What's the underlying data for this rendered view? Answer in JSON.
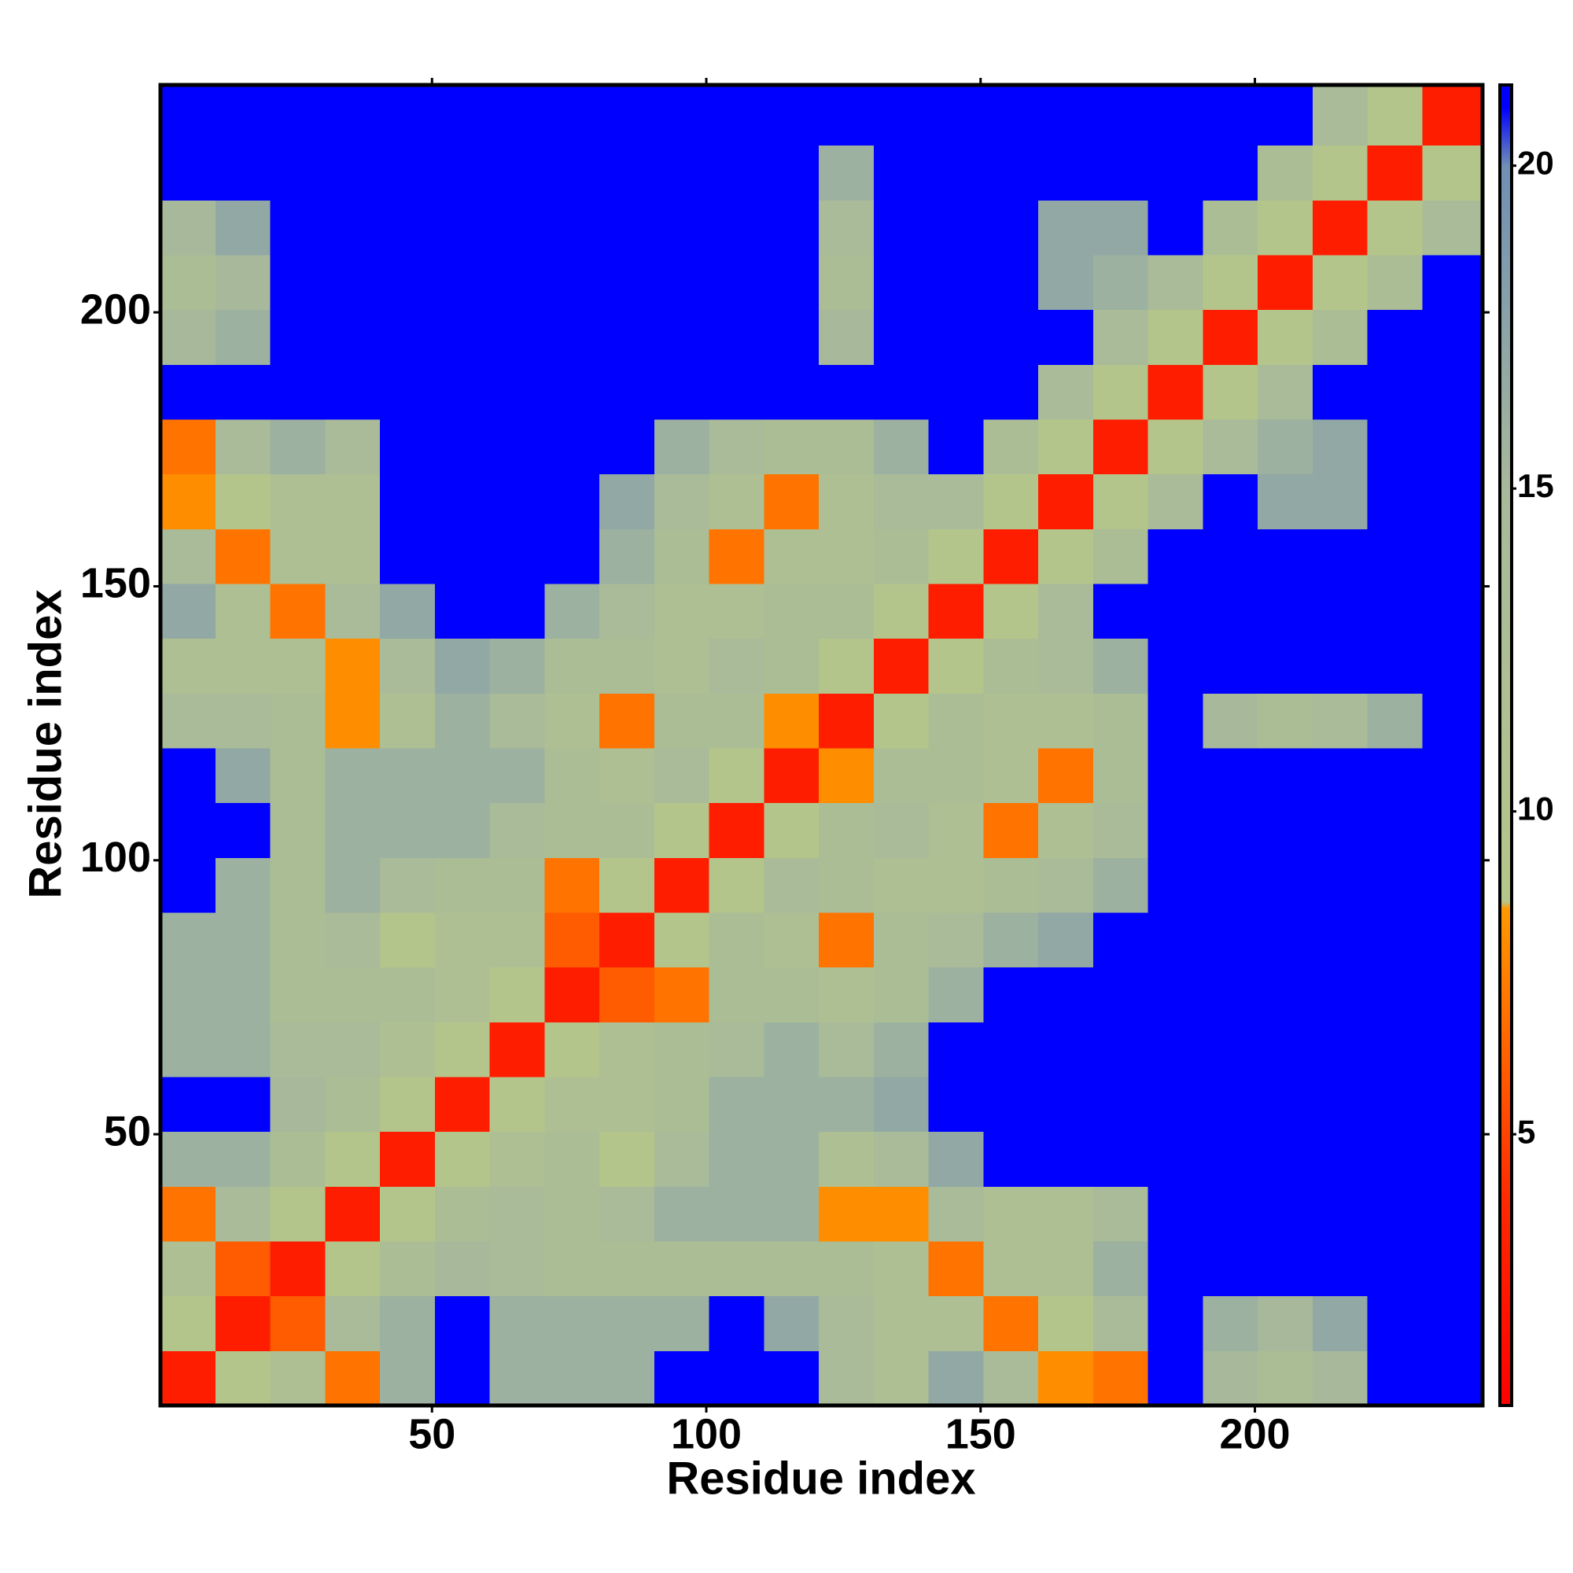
{
  "chart_data": {
    "type": "heatmap",
    "xlabel": "Residue index",
    "ylabel": "Residue index",
    "bins": [
      0.5,
      10.5,
      20.5,
      30.5,
      40.5,
      50.5,
      60.5,
      70.5,
      80.5,
      90.5,
      100.5,
      110.5,
      120.5,
      130.5,
      140.5,
      150.5,
      160.5,
      170.5,
      180.5,
      190.5,
      200.5,
      210.5,
      220.5,
      230.5,
      241.5
    ],
    "xlim": [
      0.5,
      241.5
    ],
    "ylim": [
      0.5,
      241.5
    ],
    "xticks": [
      50,
      100,
      150,
      200
    ],
    "yticks": [
      50,
      100,
      150,
      200
    ],
    "zlim": [
      0.8,
      21.25
    ],
    "zticks": [
      5,
      10,
      15,
      20
    ],
    "colorscale": [
      {
        "value": 0.8,
        "color": "#ff0000"
      },
      {
        "value": 4,
        "color": "#ff2a00"
      },
      {
        "value": 8.5,
        "color": "#ff9900"
      },
      {
        "value": 8.6,
        "color": "#b5c68a"
      },
      {
        "value": 15,
        "color": "#a7b99a"
      },
      {
        "value": 20,
        "color": "#6f8fb5"
      },
      {
        "value": 20.9,
        "color": "#0000ff"
      },
      {
        "value": 21.25,
        "color": "#0000ff"
      }
    ],
    "z": [
      [
        3,
        9,
        12,
        7,
        16,
        21,
        16,
        16,
        16,
        21,
        21,
        21,
        14,
        12,
        17,
        14,
        8,
        7,
        21,
        15,
        13,
        15,
        21,
        21
      ],
      [
        9,
        3,
        6,
        14,
        16,
        21,
        16,
        16,
        16,
        16,
        21,
        17,
        14,
        12,
        12,
        7,
        9,
        14,
        21,
        16,
        15,
        17,
        21,
        21
      ],
      [
        12,
        6,
        3,
        9,
        13,
        15,
        14,
        13,
        13,
        13,
        13,
        13,
        13,
        12,
        7,
        12,
        12,
        16,
        21,
        21,
        21,
        21,
        21,
        21
      ],
      [
        7,
        14,
        9,
        3,
        9,
        13,
        14,
        13,
        14,
        16,
        16,
        16,
        8,
        8,
        14,
        12,
        12,
        14,
        21,
        21,
        21,
        21,
        21,
        21
      ],
      [
        16,
        16,
        13,
        9,
        3,
        9,
        12,
        13,
        9,
        14,
        16,
        16,
        12,
        14,
        17,
        21,
        21,
        21,
        21,
        21,
        21,
        21,
        21,
        21
      ],
      [
        21,
        21,
        15,
        13,
        9,
        3,
        9,
        12,
        12,
        13,
        16,
        16,
        16,
        17,
        21,
        21,
        21,
        21,
        21,
        21,
        21,
        21,
        21,
        21
      ],
      [
        16,
        16,
        14,
        14,
        12,
        9,
        3,
        9,
        12,
        13,
        14,
        16,
        14,
        16,
        21,
        21,
        21,
        21,
        21,
        21,
        21,
        21,
        21,
        21
      ],
      [
        16,
        16,
        13,
        13,
        13,
        12,
        9,
        3,
        6,
        7,
        13,
        13,
        12,
        13,
        16,
        21,
        21,
        21,
        21,
        21,
        21,
        21,
        21,
        21
      ],
      [
        16,
        16,
        13,
        14,
        9,
        12,
        12,
        6,
        3,
        9,
        13,
        12,
        7,
        13,
        14,
        16,
        17,
        21,
        21,
        21,
        21,
        21,
        21,
        21
      ],
      [
        21,
        16,
        13,
        16,
        14,
        13,
        13,
        7,
        9,
        3,
        9,
        14,
        13,
        12,
        12,
        13,
        14,
        16,
        21,
        21,
        21,
        21,
        21,
        21
      ],
      [
        21,
        21,
        13,
        16,
        16,
        16,
        14,
        13,
        13,
        9,
        3,
        9,
        13,
        14,
        12,
        7,
        12,
        14,
        21,
        21,
        21,
        21,
        21,
        21
      ],
      [
        21,
        17,
        13,
        16,
        16,
        16,
        16,
        13,
        12,
        14,
        9,
        3,
        8,
        13,
        13,
        12,
        7,
        13,
        21,
        21,
        21,
        21,
        21,
        21
      ],
      [
        14,
        14,
        13,
        8,
        12,
        16,
        14,
        12,
        7,
        13,
        13,
        8,
        3,
        9,
        13,
        12,
        12,
        13,
        21,
        15,
        13,
        14,
        16,
        21
      ],
      [
        12,
        12,
        12,
        8,
        14,
        17,
        16,
        13,
        13,
        12,
        14,
        13,
        9,
        3,
        9,
        13,
        14,
        16,
        21,
        21,
        21,
        21,
        21,
        21
      ],
      [
        17,
        12,
        7,
        14,
        17,
        21,
        21,
        16,
        14,
        12,
        12,
        13,
        13,
        9,
        3,
        9,
        14,
        21,
        21,
        21,
        21,
        21,
        21,
        21
      ],
      [
        14,
        7,
        12,
        12,
        21,
        21,
        21,
        21,
        16,
        13,
        7,
        12,
        12,
        13,
        9,
        3,
        9,
        13,
        21,
        21,
        21,
        21,
        21,
        21
      ],
      [
        8,
        9,
        12,
        12,
        21,
        21,
        21,
        21,
        17,
        14,
        12,
        7,
        12,
        14,
        14,
        9,
        3,
        9,
        14,
        21,
        17,
        17,
        21,
        21
      ],
      [
        7,
        14,
        16,
        14,
        21,
        21,
        21,
        21,
        21,
        16,
        14,
        13,
        13,
        16,
        21,
        13,
        9,
        3,
        9,
        14,
        16,
        17,
        21,
        21
      ],
      [
        21,
        21,
        21,
        21,
        21,
        21,
        21,
        21,
        21,
        21,
        21,
        21,
        21,
        21,
        21,
        21,
        14,
        9,
        3,
        9,
        14,
        21,
        21,
        21
      ],
      [
        15,
        16,
        21,
        21,
        21,
        21,
        21,
        21,
        21,
        21,
        21,
        21,
        15,
        21,
        21,
        21,
        21,
        14,
        9,
        3,
        9,
        13,
        21,
        21
      ],
      [
        13,
        15,
        21,
        21,
        21,
        21,
        21,
        21,
        21,
        21,
        21,
        21,
        13,
        21,
        21,
        21,
        17,
        16,
        14,
        9,
        3,
        9,
        13,
        21
      ],
      [
        15,
        17,
        21,
        21,
        21,
        21,
        21,
        21,
        21,
        21,
        21,
        21,
        14,
        21,
        21,
        21,
        17,
        17,
        21,
        13,
        9,
        3,
        9,
        14
      ],
      [
        21,
        21,
        21,
        21,
        21,
        21,
        21,
        21,
        21,
        21,
        21,
        21,
        16,
        21,
        21,
        21,
        21,
        21,
        21,
        21,
        13,
        9,
        3,
        9
      ],
      [
        21,
        21,
        21,
        21,
        21,
        21,
        21,
        21,
        21,
        21,
        21,
        21,
        21,
        21,
        21,
        21,
        21,
        21,
        21,
        21,
        21,
        14,
        9,
        3
      ]
    ]
  }
}
